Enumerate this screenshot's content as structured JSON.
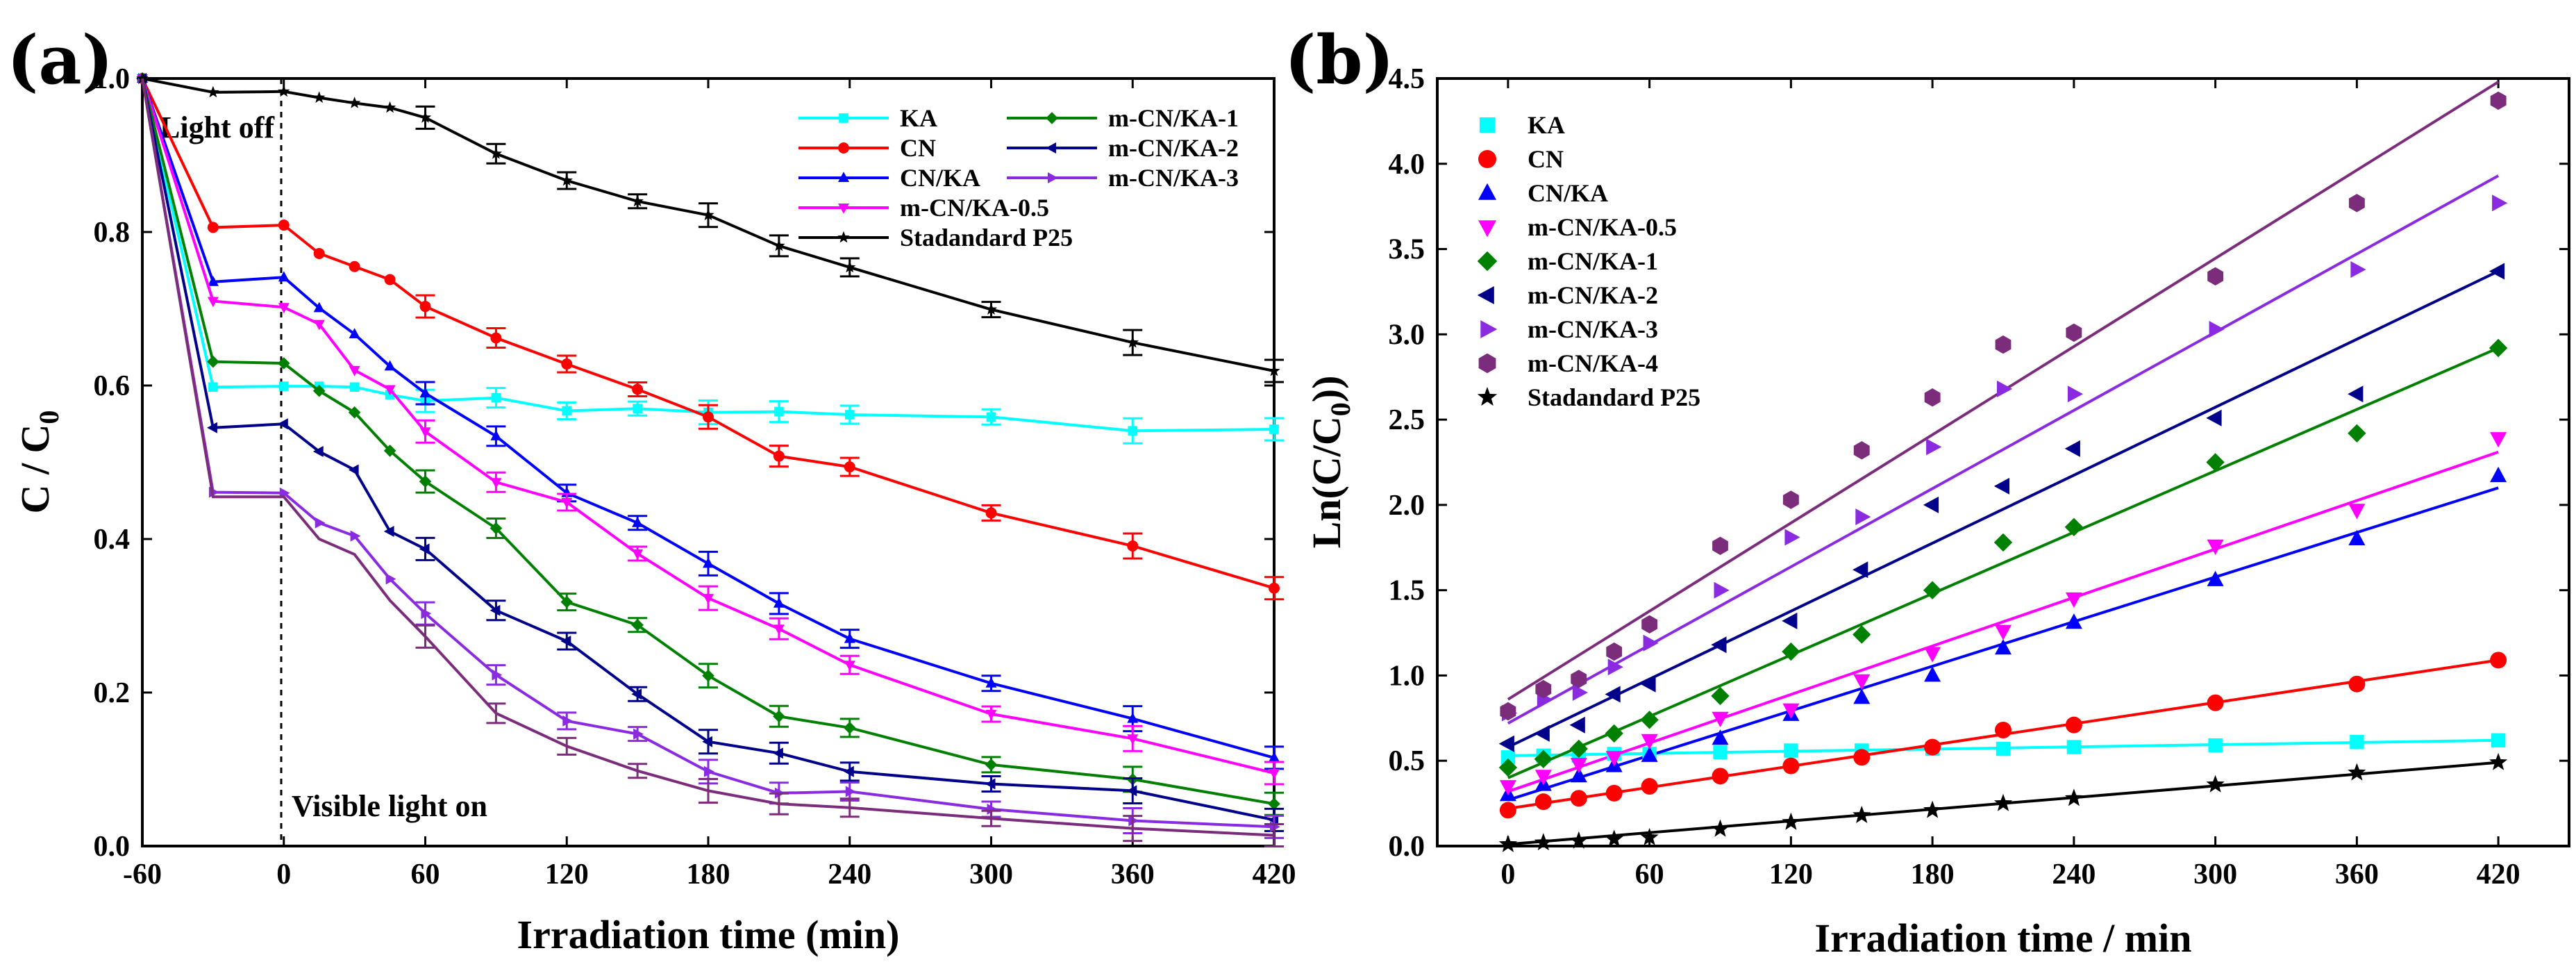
{
  "chart_data": [
    {
      "panel_label": "(a)",
      "type": "line",
      "xlabel": "Irradiation time (min)",
      "ylabel": "C / C",
      "ylabel_sub": "0",
      "xlim": [
        -60,
        420
      ],
      "ylim": [
        0,
        1.0
      ],
      "xticks": [
        "-60",
        "0",
        "60",
        "120",
        "180",
        "240",
        "300",
        "360",
        "420"
      ],
      "yticks": [
        "0.0",
        "0.2",
        "0.4",
        "0.6",
        "0.8",
        "1.0"
      ],
      "annotations": [
        "Light off",
        "Visible light on"
      ],
      "divider_x": 0,
      "legend_position": "top-right",
      "x": [
        -60,
        -30,
        0,
        15,
        30,
        45,
        60,
        90,
        120,
        150,
        180,
        210,
        240,
        300,
        360,
        420
      ],
      "series": [
        {
          "name": "KA",
          "color": "#00FFFF",
          "marker": "square",
          "values": [
            1.0,
            0.598,
            0.599,
            0.599,
            0.598,
            0.588,
            0.58,
            0.584,
            0.567,
            0.57,
            0.565,
            0.566,
            0.562,
            0.559,
            0.541,
            0.543
          ]
        },
        {
          "name": "CN",
          "color": "#FF0000",
          "marker": "circle",
          "values": [
            1.0,
            0.806,
            0.809,
            0.772,
            0.755,
            0.738,
            0.703,
            0.662,
            0.628,
            0.595,
            0.559,
            0.508,
            0.494,
            0.434,
            0.391,
            0.336
          ]
        },
        {
          "name": "CN/KA",
          "color": "#0000FF",
          "marker": "triangle-up",
          "values": [
            1.0,
            0.735,
            0.741,
            0.701,
            0.667,
            0.625,
            0.59,
            0.534,
            0.46,
            0.421,
            0.368,
            0.316,
            0.27,
            0.212,
            0.166,
            0.115
          ]
        },
        {
          "name": "m-CN/KA-0.5",
          "color": "#FF00FF",
          "marker": "triangle-down",
          "values": [
            1.0,
            0.71,
            0.702,
            0.68,
            0.62,
            0.595,
            0.54,
            0.474,
            0.448,
            0.381,
            0.323,
            0.283,
            0.236,
            0.172,
            0.14,
            0.095
          ]
        },
        {
          "name": "m-CN/KA-1",
          "color": "#008000",
          "marker": "diamond",
          "values": [
            1.0,
            0.631,
            0.629,
            0.593,
            0.565,
            0.515,
            0.475,
            0.414,
            0.318,
            0.288,
            0.222,
            0.169,
            0.154,
            0.106,
            0.087,
            0.055
          ]
        },
        {
          "name": "m-CN/KA-2",
          "color": "#00008B",
          "marker": "triangle-left",
          "values": [
            1.0,
            0.545,
            0.55,
            0.514,
            0.49,
            0.41,
            0.387,
            0.307,
            0.267,
            0.198,
            0.136,
            0.121,
            0.097,
            0.081,
            0.072,
            0.034
          ]
        },
        {
          "name": "m-CN/KA-3",
          "color": "#8A2BE2",
          "marker": "triangle-right",
          "values": [
            1.0,
            0.461,
            0.46,
            0.421,
            0.404,
            0.348,
            0.303,
            0.223,
            0.163,
            0.146,
            0.097,
            0.069,
            0.071,
            0.048,
            0.033,
            0.025
          ]
        },
        {
          "name": "Stadandard P25",
          "color": "#000000",
          "marker": "star",
          "values": [
            1.0,
            0.982,
            0.983,
            0.975,
            0.968,
            0.962,
            0.949,
            0.902,
            0.867,
            0.84,
            0.822,
            0.782,
            0.754,
            0.699,
            0.656,
            0.619
          ]
        }
      ],
      "m_CN_KA_4_hidden_line": {
        "name": "m-CN/KA-4",
        "color": "#7B2D7B",
        "values": [
          1.0,
          0.455,
          0.455,
          0.4,
          0.38,
          0.32,
          0.273,
          0.173,
          0.13,
          0.098,
          0.072,
          0.055,
          0.05,
          0.036,
          0.023,
          0.014
        ]
      }
    },
    {
      "panel_label": "(b)",
      "type": "scatter",
      "xlabel": "Irradiation time / min",
      "ylabel": "Ln(C/C",
      "ylabel_sub": "0",
      "ylabel_end": "))",
      "xlim": [
        -30,
        450
      ],
      "ylim": [
        0,
        4.5
      ],
      "xticks": [
        "0",
        "60",
        "120",
        "180",
        "240",
        "300",
        "360",
        "420"
      ],
      "yticks": [
        "0.0",
        "0.5",
        "1.0",
        "1.5",
        "2.0",
        "2.5",
        "3.0",
        "3.5",
        "4.0",
        "4.5"
      ],
      "legend_position": "top-left",
      "x": [
        0,
        15,
        30,
        45,
        60,
        90,
        120,
        150,
        180,
        210,
        240,
        300,
        360,
        420
      ],
      "series": [
        {
          "name": "KA",
          "color": "#00FFFF",
          "marker": "square",
          "values": [
            0.52,
            0.53,
            0.53,
            0.54,
            0.54,
            0.55,
            0.56,
            0.56,
            0.57,
            0.57,
            0.58,
            0.59,
            0.61,
            0.62
          ],
          "fit": [
            0.53,
            0.62
          ]
        },
        {
          "name": "CN",
          "color": "#FF0000",
          "marker": "circle",
          "values": [
            0.21,
            0.26,
            0.28,
            0.31,
            0.35,
            0.41,
            0.47,
            0.52,
            0.58,
            0.68,
            0.71,
            0.84,
            0.95,
            1.09
          ],
          "fit": [
            0.22,
            1.09
          ]
        },
        {
          "name": "CN/KA",
          "color": "#0000FF",
          "marker": "triangle-up",
          "values": [
            0.3,
            0.36,
            0.41,
            0.47,
            0.53,
            0.63,
            0.77,
            0.87,
            1.0,
            1.16,
            1.31,
            1.56,
            1.8,
            2.17
          ],
          "fit": [
            0.27,
            2.1
          ]
        },
        {
          "name": "m-CN/KA-0.5",
          "color": "#FF00FF",
          "marker": "triangle-down",
          "values": [
            0.35,
            0.41,
            0.48,
            0.52,
            0.62,
            0.75,
            0.8,
            0.97,
            1.13,
            1.26,
            1.45,
            1.76,
            1.97,
            2.39
          ],
          "fit": [
            0.32,
            2.31
          ]
        },
        {
          "name": "m-CN/KA-1",
          "color": "#008000",
          "marker": "diamond",
          "values": [
            0.46,
            0.51,
            0.57,
            0.66,
            0.74,
            0.88,
            1.14,
            1.24,
            1.5,
            1.78,
            1.87,
            2.25,
            2.42,
            2.92
          ],
          "fit": [
            0.4,
            2.92
          ]
        },
        {
          "name": "m-CN/KA-2",
          "color": "#00008B",
          "marker": "triangle-left",
          "values": [
            0.6,
            0.66,
            0.71,
            0.89,
            0.95,
            1.18,
            1.32,
            1.62,
            2.0,
            2.11,
            2.33,
            2.51,
            2.65,
            3.37
          ],
          "fit": [
            0.58,
            3.37
          ]
        },
        {
          "name": "m-CN/KA-3",
          "color": "#8A2BE2",
          "marker": "triangle-right",
          "values": [
            0.78,
            0.86,
            0.9,
            1.05,
            1.19,
            1.5,
            1.81,
            1.93,
            2.34,
            2.68,
            2.65,
            3.03,
            3.38,
            3.77
          ],
          "fit": [
            0.72,
            3.93
          ]
        },
        {
          "name": "m-CN/KA-4",
          "color": "#7B2D7B",
          "marker": "hexagon",
          "values": [
            0.79,
            0.92,
            0.98,
            1.14,
            1.3,
            1.76,
            2.03,
            2.32,
            2.63,
            2.94,
            3.01,
            3.34,
            3.77,
            4.37
          ],
          "fit": [
            0.86,
            4.48
          ]
        },
        {
          "name": "Stadandard P25",
          "color": "#000000",
          "marker": "star",
          "values": [
            0.01,
            0.02,
            0.03,
            0.04,
            0.05,
            0.1,
            0.14,
            0.18,
            0.21,
            0.25,
            0.28,
            0.36,
            0.43,
            0.49
          ],
          "fit": [
            0.01,
            0.49
          ]
        }
      ]
    }
  ]
}
